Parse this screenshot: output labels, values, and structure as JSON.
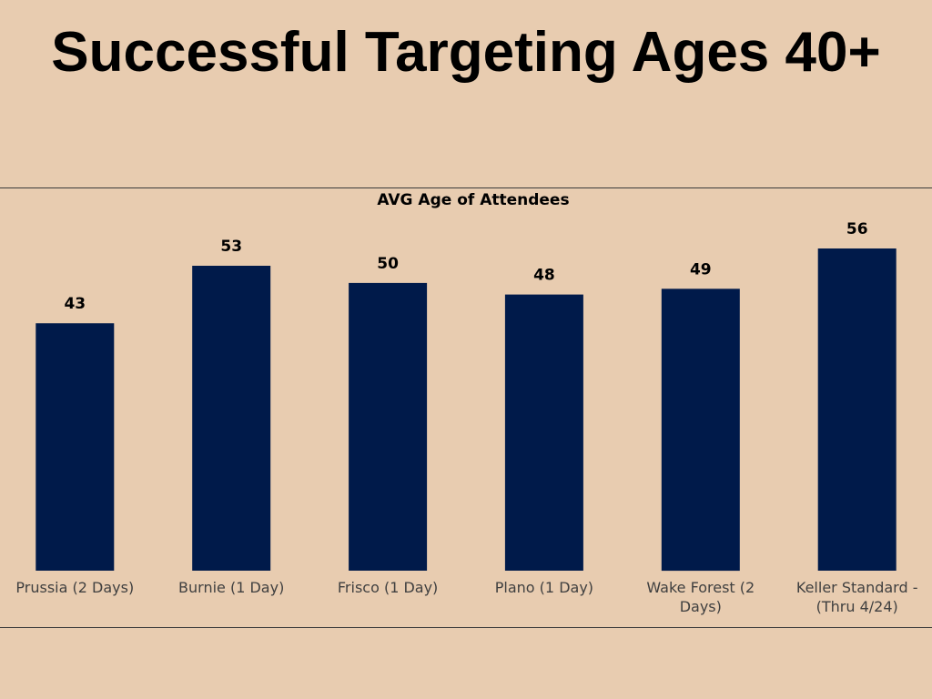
{
  "slide": {
    "title": "Successful Targeting Ages 40+"
  },
  "colors": {
    "background": "#e8ccb0",
    "bar": "#001a4a"
  },
  "chart_data": {
    "type": "bar",
    "title": "AVG Age of Attendees",
    "xlabel": "",
    "ylabel": "",
    "categories": [
      "Prussia (2 Days)",
      "Burnie (1 Day)",
      "Frisco (1 Day)",
      "Plano (1 Day)",
      "Wake Forest (2 Days)",
      "Keller Standard - (Thru 4/24)"
    ],
    "category_lines": [
      [
        "Prussia (2 Days)"
      ],
      [
        "Burnie (1 Day)"
      ],
      [
        "Frisco (1 Day)"
      ],
      [
        "Plano (1 Day)"
      ],
      [
        "Wake Forest (2",
        "Days)"
      ],
      [
        "Keller Standard -",
        "(Thru 4/24)"
      ]
    ],
    "values": [
      43,
      53,
      50,
      48,
      49,
      56
    ],
    "ylim": [
      0,
      56
    ],
    "grid": false,
    "data_labels": true
  }
}
